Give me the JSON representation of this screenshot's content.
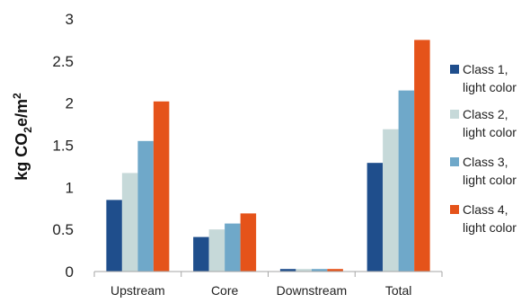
{
  "chart_data": {
    "type": "bar",
    "title": "",
    "xlabel": "",
    "ylabel": "kg CO₂e/m²",
    "ylim": [
      0,
      3
    ],
    "yticks": [
      "0",
      "0.5",
      "1",
      "1.5",
      "2",
      "2.5",
      "3"
    ],
    "ytick_values": [
      0,
      0.5,
      1,
      1.5,
      2,
      2.5,
      3
    ],
    "grid": false,
    "legend_position": "right",
    "categories": [
      "Upstream",
      "Core",
      "Downstream",
      "Total"
    ],
    "series": [
      {
        "name": "Class 1, light color",
        "name_lines": [
          "Class 1,",
          "light color"
        ],
        "color": "#1f4e8c",
        "values": [
          0.85,
          0.41,
          0.03,
          1.29
        ]
      },
      {
        "name": "Class 2, light color",
        "name_lines": [
          "Class 2,",
          "light color"
        ],
        "color": "#c6d9d9",
        "values": [
          1.17,
          0.5,
          0.03,
          1.69
        ]
      },
      {
        "name": "Class 3, light color",
        "name_lines": [
          "Class 3,",
          "light color"
        ],
        "color": "#6fa8c9",
        "values": [
          1.55,
          0.57,
          0.03,
          2.15
        ]
      },
      {
        "name": "Class 4, light color",
        "name_lines": [
          "Class 4,",
          "light color"
        ],
        "color": "#e5531a",
        "values": [
          2.02,
          0.69,
          0.03,
          2.75
        ]
      }
    ]
  }
}
